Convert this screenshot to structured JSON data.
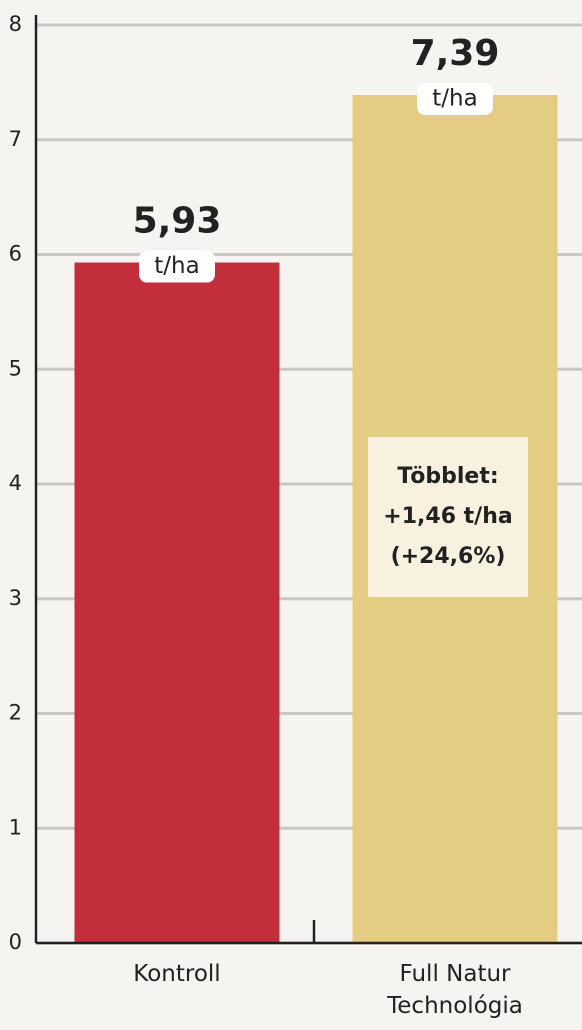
{
  "chart_data": {
    "type": "bar",
    "categories": [
      "Kontroll",
      "Full Natur Technológia"
    ],
    "values": [
      5.93,
      7.39
    ],
    "value_labels": [
      "5,93",
      "7,39"
    ],
    "unit_label": "t/ha",
    "colors": [
      "#c22f3a",
      "#e4cd83"
    ],
    "ylim": [
      0,
      8
    ],
    "yticks": [
      0,
      1,
      2,
      3,
      4,
      5,
      6,
      7,
      8
    ],
    "grid": true,
    "annotation": [
      "Többlet:",
      "+1,46 t/ha",
      "(+24,6%)"
    ]
  }
}
